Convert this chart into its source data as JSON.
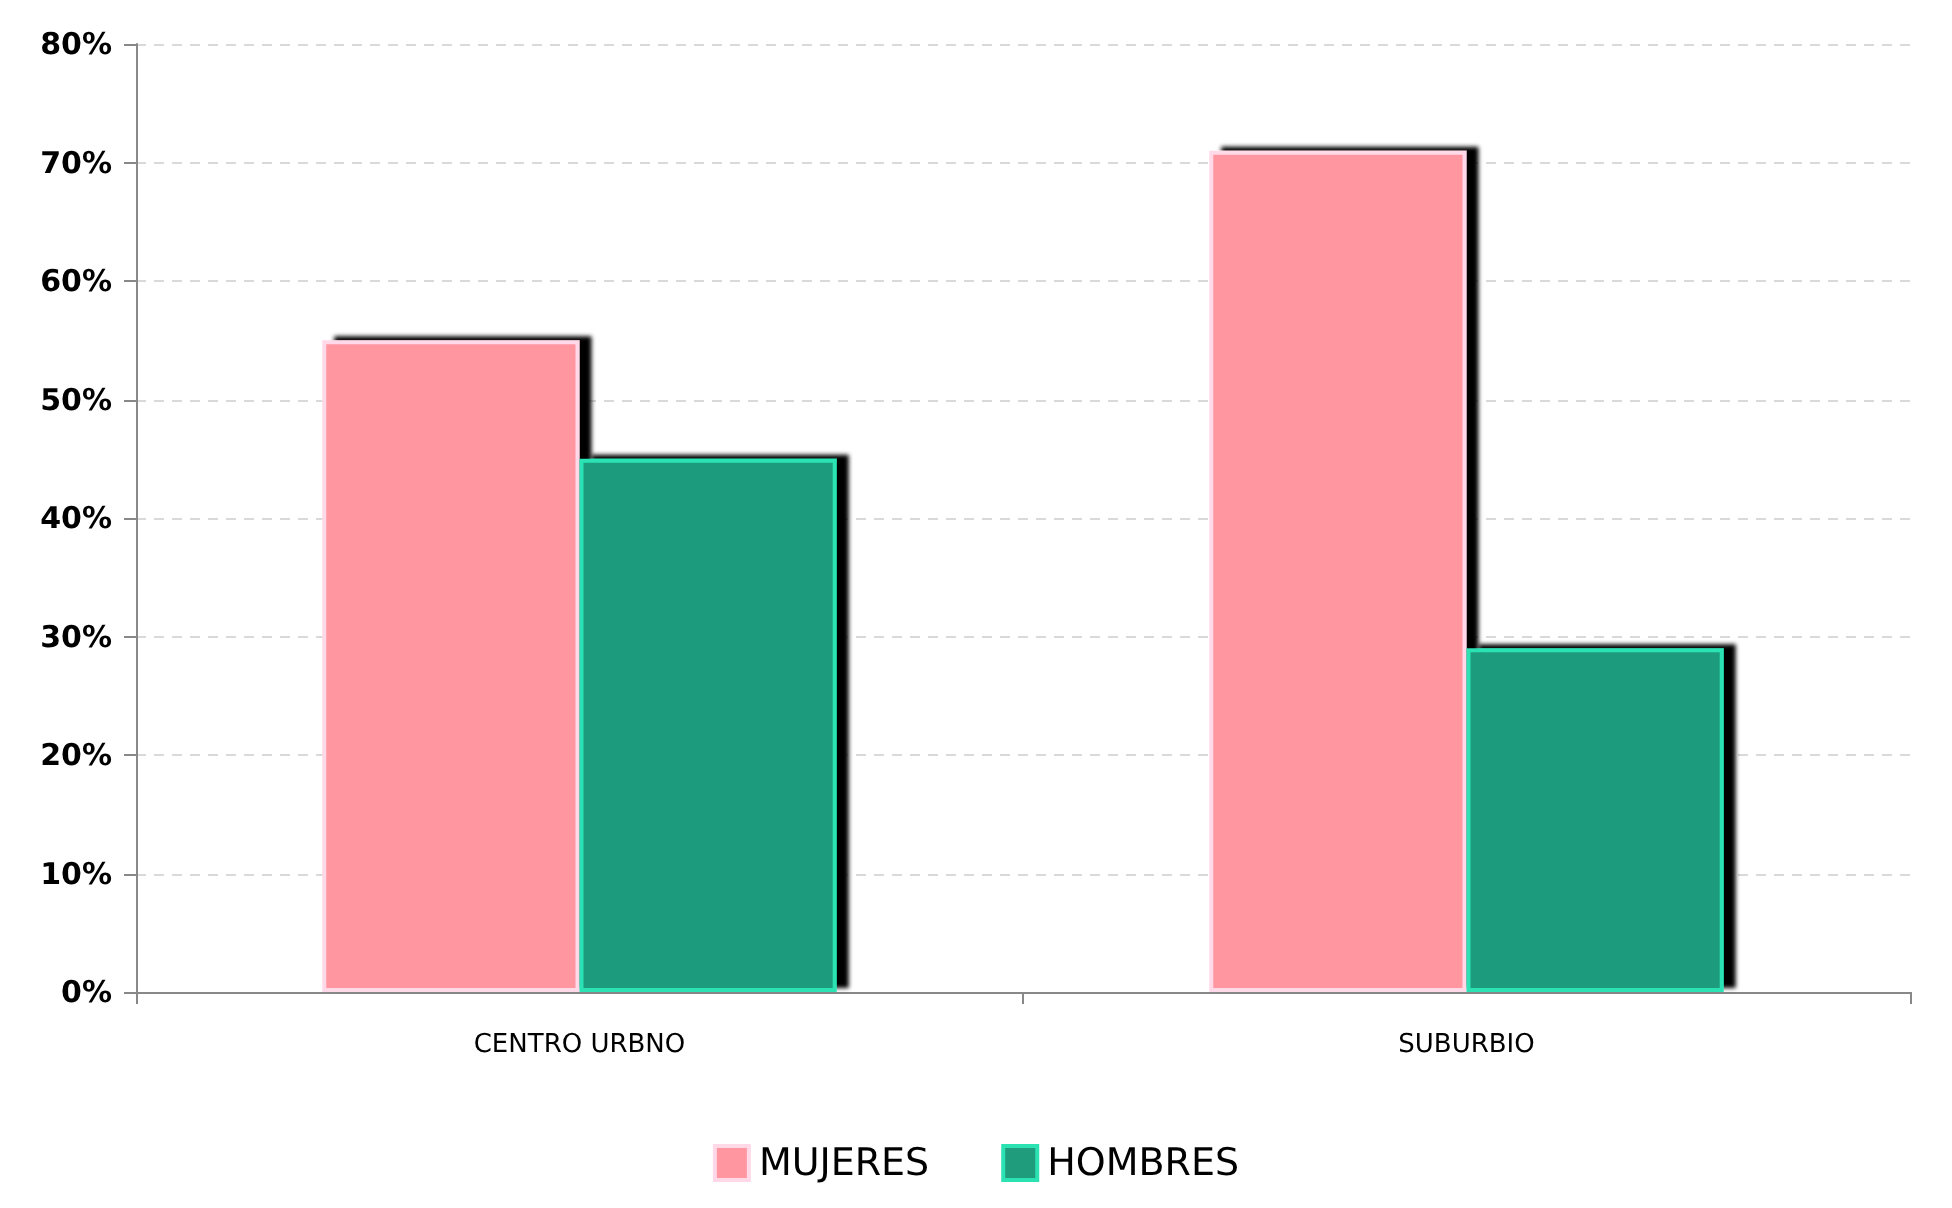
{
  "chart_data": {
    "type": "bar",
    "categories": [
      "CENTRO URBNO",
      "SUBURBIO"
    ],
    "series": [
      {
        "name": "MUJERES",
        "color": "#ff96a0",
        "values": [
          55,
          71
        ]
      },
      {
        "name": "HOMBRES",
        "color": "#1e9c7c",
        "values": [
          45,
          29
        ]
      }
    ],
    "ylim": [
      0,
      80
    ],
    "yticks": [
      {
        "value": 0,
        "label": "0%"
      },
      {
        "value": 10,
        "label": "10%"
      },
      {
        "value": 20,
        "label": "20%"
      },
      {
        "value": 30,
        "label": "30%"
      },
      {
        "value": 40,
        "label": "40%"
      },
      {
        "value": 50,
        "label": "50%"
      },
      {
        "value": 60,
        "label": "60%"
      },
      {
        "value": 70,
        "label": "70%"
      },
      {
        "value": 80,
        "label": "80%"
      }
    ],
    "grid": "y",
    "legend": "bottom"
  }
}
